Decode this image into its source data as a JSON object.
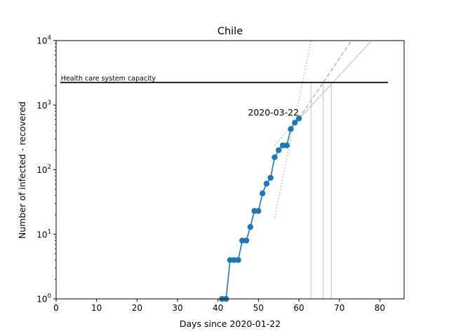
{
  "chart_data": {
    "type": "line",
    "title": "Chile",
    "xlabel": "Days since 2020-01-22",
    "ylabel": "Number of infected - recovered",
    "xlim": [
      0,
      86
    ],
    "ylim": [
      1,
      10000
    ],
    "yscale": "log",
    "x_ticks": [
      0,
      10,
      20,
      30,
      40,
      50,
      60,
      70,
      80
    ],
    "y_ticks": [
      {
        "value": 1,
        "base": "10",
        "exp": "0"
      },
      {
        "value": 10,
        "base": "10",
        "exp": "1"
      },
      {
        "value": 100,
        "base": "10",
        "exp": "2"
      },
      {
        "value": 1000,
        "base": "10",
        "exp": "3"
      },
      {
        "value": 10000,
        "base": "10",
        "exp": "4"
      }
    ],
    "grid": false,
    "series": [
      {
        "color": "#1f77b4",
        "marker": "circle",
        "points": [
          [
            41,
            1
          ],
          [
            42,
            1
          ],
          [
            43,
            4
          ],
          [
            44,
            4
          ],
          [
            45,
            4
          ],
          [
            46,
            8
          ],
          [
            47,
            8
          ],
          [
            48,
            13
          ],
          [
            49,
            23
          ],
          [
            50,
            23
          ],
          [
            51,
            43
          ],
          [
            52,
            61
          ],
          [
            53,
            75
          ],
          [
            54,
            156
          ],
          [
            55,
            201
          ],
          [
            56,
            238
          ],
          [
            57,
            238
          ],
          [
            58,
            428
          ],
          [
            59,
            537
          ],
          [
            60,
            623
          ]
        ]
      }
    ],
    "capacity_line": {
      "label": "Health care system capacity",
      "y": 2250,
      "x_range": [
        1,
        82
      ],
      "color": "#000000"
    },
    "annotation": {
      "text": "2020-03-22",
      "x": 60,
      "y": 623
    },
    "projections": [
      {
        "style": "dotted",
        "color": "#bbbbbb",
        "x0": 54,
        "y0": 18,
        "x1": 63,
        "y1": 10000
      },
      {
        "style": "dotted",
        "color": "#bbbbbb",
        "x0": 54,
        "y0": 240,
        "x1": 78,
        "y1": 10000
      },
      {
        "style": "dotted",
        "color": "#bbbbbb",
        "x0": 59,
        "y0": 520,
        "x1": 78,
        "y1": 10000
      },
      {
        "style": "dashed",
        "color": "#bbbbbb",
        "x0": 60,
        "y0": 623,
        "x1": 73,
        "y1": 10000
      }
    ],
    "crossing_markers": [
      {
        "x": 63,
        "color": "#cccccc"
      },
      {
        "x": 66,
        "color": "#cccccc"
      },
      {
        "x": 68,
        "color": "#cccccc"
      }
    ]
  }
}
